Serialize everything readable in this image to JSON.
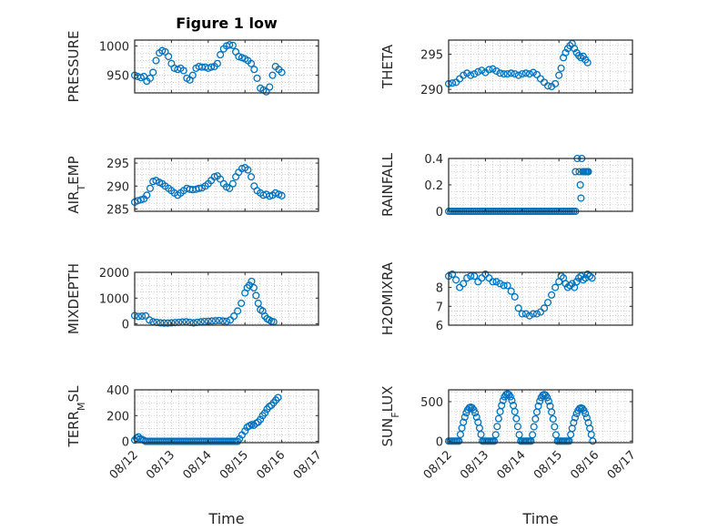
{
  "figure_title": "Figure 1 low",
  "colors": {
    "marker": "#0072BD",
    "axis": "#262626",
    "grid": "#b0b0b0"
  },
  "chart_data": [
    {
      "type": "scatter",
      "ylabel": "PRESSURE",
      "xlim": [
        0,
        5
      ],
      "ylim": [
        920,
        1010
      ],
      "yticks": [
        950,
        1000
      ],
      "xticklabels_visible": false,
      "x": [
        0.0,
        0.08,
        0.17,
        0.25,
        0.33,
        0.42,
        0.5,
        0.58,
        0.67,
        0.75,
        0.83,
        0.92,
        1.0,
        1.08,
        1.17,
        1.25,
        1.33,
        1.42,
        1.5,
        1.58,
        1.67,
        1.75,
        1.83,
        1.92,
        2.0,
        2.08,
        2.17,
        2.25,
        2.33,
        2.42,
        2.5,
        2.58,
        2.67,
        2.75,
        2.83,
        2.92,
        3.0,
        3.08,
        3.17,
        3.25,
        3.33,
        3.42,
        3.5,
        3.58,
        3.67,
        3.75,
        3.83,
        3.92,
        4.0
      ],
      "y": [
        950,
        948,
        946,
        948,
        940,
        945,
        955,
        975,
        988,
        992,
        990,
        982,
        970,
        962,
        960,
        962,
        958,
        945,
        942,
        950,
        962,
        965,
        964,
        964,
        962,
        964,
        965,
        970,
        985,
        995,
        1000,
        1002,
        1001,
        990,
        982,
        980,
        978,
        975,
        970,
        960,
        945,
        928,
        925,
        922,
        930,
        950,
        965,
        960,
        955
      ]
    },
    {
      "type": "scatter",
      "ylabel": "THETA",
      "xlim": [
        0,
        5
      ],
      "ylim": [
        289.5,
        297
      ],
      "yticks": [
        290,
        295
      ],
      "xticklabels_visible": false,
      "x": [
        0.0,
        0.1,
        0.2,
        0.3,
        0.4,
        0.5,
        0.6,
        0.7,
        0.8,
        0.9,
        1.0,
        1.1,
        1.2,
        1.3,
        1.4,
        1.5,
        1.6,
        1.7,
        1.8,
        1.9,
        2.0,
        2.1,
        2.2,
        2.3,
        2.4,
        2.5,
        2.6,
        2.7,
        2.8,
        2.9,
        3.0,
        3.06,
        3.12,
        3.18,
        3.24,
        3.3,
        3.36,
        3.42,
        3.48,
        3.54,
        3.6,
        3.66,
        3.72,
        3.78
      ],
      "y": [
        290.8,
        290.9,
        291.0,
        291.5,
        292.0,
        292.3,
        292.0,
        292.2,
        292.5,
        292.7,
        292.4,
        292.8,
        292.9,
        292.6,
        292.3,
        292.2,
        292.2,
        292.3,
        292.2,
        292.0,
        292.2,
        292.3,
        292.2,
        292.4,
        292.1,
        291.5,
        291.0,
        290.5,
        290.4,
        290.8,
        292.0,
        293.0,
        294.5,
        295.2,
        295.8,
        296.2,
        296.5,
        295.8,
        295.2,
        294.8,
        294.5,
        294.7,
        294.2,
        293.8
      ]
    },
    {
      "type": "scatter",
      "ylabel_main": "AIR",
      "ylabel_sub": "T",
      "ylabel_rest": "EMP",
      "xlim": [
        0,
        5
      ],
      "ylim": [
        284.5,
        296
      ],
      "yticks": [
        285,
        290,
        295
      ],
      "xticklabels_visible": false,
      "x": [
        0.0,
        0.08,
        0.17,
        0.25,
        0.33,
        0.42,
        0.5,
        0.58,
        0.67,
        0.75,
        0.83,
        0.92,
        1.0,
        1.08,
        1.17,
        1.25,
        1.33,
        1.42,
        1.5,
        1.58,
        1.67,
        1.75,
        1.83,
        1.92,
        2.0,
        2.08,
        2.17,
        2.25,
        2.33,
        2.42,
        2.5,
        2.58,
        2.67,
        2.75,
        2.83,
        2.92,
        3.0,
        3.08,
        3.17,
        3.25,
        3.33,
        3.42,
        3.5,
        3.58,
        3.67,
        3.75,
        3.83,
        3.92,
        4.0
      ],
      "y": [
        286.5,
        286.8,
        287.0,
        287.2,
        288.0,
        289.5,
        291.0,
        291.2,
        290.8,
        290.5,
        290.0,
        289.5,
        289.0,
        288.5,
        288.0,
        288.5,
        289.0,
        289.5,
        289.3,
        289.2,
        289.3,
        289.5,
        289.6,
        290.0,
        290.5,
        291.2,
        292.0,
        292.2,
        291.5,
        290.5,
        289.8,
        289.5,
        290.5,
        292.0,
        293.0,
        293.8,
        294.0,
        293.5,
        292.0,
        290.0,
        289.0,
        288.5,
        288.0,
        288.2,
        287.8,
        288.0,
        288.5,
        288.2,
        287.9
      ]
    },
    {
      "type": "scatter",
      "ylabel": "RAINFALL",
      "xlim": [
        0,
        5
      ],
      "ylim": [
        0,
        0.4
      ],
      "yticks": [
        0,
        0.2,
        0.4
      ],
      "xticklabels_visible": false,
      "x_zero_range": [
        0.0,
        3.45
      ],
      "x_zero_step": 0.05,
      "x": [
        3.45,
        3.5,
        3.55,
        3.58,
        3.6,
        3.62,
        3.65,
        3.68,
        3.72,
        3.75,
        3.78,
        3.8
      ],
      "y": [
        0.3,
        0.4,
        0.3,
        0.2,
        0.1,
        0.4,
        0.3,
        0.3,
        0.3,
        0.3,
        0.3,
        0.3
      ]
    },
    {
      "type": "scatter",
      "ylabel": "MIXDEPTH",
      "xlim": [
        0,
        5
      ],
      "ylim": [
        -50,
        2000
      ],
      "yticks": [
        0,
        1000,
        2000
      ],
      "xticklabels_visible": false,
      "x": [
        0.0,
        0.1,
        0.2,
        0.3,
        0.4,
        0.5,
        0.6,
        0.7,
        0.8,
        0.9,
        1.0,
        1.1,
        1.2,
        1.3,
        1.4,
        1.5,
        1.6,
        1.7,
        1.8,
        1.9,
        2.0,
        2.1,
        2.2,
        2.3,
        2.4,
        2.5,
        2.6,
        2.7,
        2.8,
        2.9,
        3.0,
        3.06,
        3.12,
        3.18,
        3.24,
        3.3,
        3.36,
        3.42,
        3.48,
        3.54,
        3.6,
        3.66,
        3.72,
        3.78
      ],
      "y": [
        320,
        290,
        300,
        310,
        150,
        80,
        60,
        40,
        30,
        30,
        40,
        50,
        60,
        70,
        80,
        60,
        40,
        60,
        80,
        90,
        100,
        110,
        120,
        130,
        110,
        100,
        150,
        300,
        500,
        800,
        1200,
        1400,
        1500,
        1650,
        1400,
        1100,
        800,
        550,
        500,
        300,
        200,
        150,
        100,
        80
      ]
    },
    {
      "type": "scatter",
      "ylabel": "H2OMIXRA",
      "xlim": [
        0,
        5
      ],
      "ylim": [
        6,
        8.8
      ],
      "yticks": [
        6,
        7,
        8
      ],
      "xticklabels_visible": false,
      "x": [
        0.0,
        0.1,
        0.2,
        0.3,
        0.4,
        0.5,
        0.6,
        0.7,
        0.8,
        0.9,
        1.0,
        1.1,
        1.2,
        1.3,
        1.4,
        1.5,
        1.6,
        1.7,
        1.8,
        1.9,
        2.0,
        2.1,
        2.2,
        2.3,
        2.4,
        2.5,
        2.6,
        2.7,
        2.8,
        2.9,
        3.0,
        3.06,
        3.12,
        3.18,
        3.24,
        3.3,
        3.36,
        3.42,
        3.48,
        3.54,
        3.6,
        3.66,
        3.72,
        3.78,
        3.84,
        3.9
      ],
      "y": [
        8.6,
        8.7,
        8.4,
        8.0,
        8.2,
        8.5,
        8.6,
        8.6,
        8.3,
        8.5,
        8.7,
        8.5,
        8.3,
        8.3,
        8.2,
        8.1,
        8.1,
        7.8,
        7.5,
        6.9,
        6.6,
        6.6,
        6.5,
        6.6,
        6.6,
        6.7,
        6.9,
        7.2,
        7.6,
        8.0,
        8.3,
        8.6,
        8.5,
        8.2,
        8.0,
        8.1,
        8.2,
        8.0,
        8.3,
        8.5,
        8.6,
        8.4,
        8.5,
        8.7,
        8.6,
        8.5
      ]
    },
    {
      "type": "scatter",
      "ylabel_main": "TERR",
      "ylabel_sub": "M",
      "ylabel_rest": "SL",
      "xlim": [
        0,
        5
      ],
      "ylim": [
        -10,
        400
      ],
      "yticks": [
        0,
        200,
        400
      ],
      "xticklabels": [
        "08/12",
        "08/13",
        "08/14",
        "08/15",
        "08/16",
        "08/17"
      ],
      "xlabel": "Time",
      "x_zero_range": [
        0.3,
        2.8
      ],
      "x_zero_step": 0.05,
      "x": [
        0.0,
        0.05,
        0.1,
        0.15,
        0.2,
        0.25,
        2.85,
        2.92,
        3.0,
        3.06,
        3.12,
        3.18,
        3.24,
        3.3,
        3.36,
        3.42,
        3.48,
        3.54,
        3.6,
        3.66,
        3.72,
        3.78,
        3.84,
        3.9
      ],
      "y": [
        10,
        25,
        35,
        20,
        15,
        8,
        20,
        50,
        80,
        110,
        120,
        130,
        125,
        140,
        150,
        170,
        200,
        220,
        250,
        270,
        280,
        300,
        320,
        340
      ]
    },
    {
      "type": "scatter",
      "ylabel_main": "SUN",
      "ylabel_sub": "F",
      "ylabel_rest": "LUX",
      "xlim": [
        0,
        5
      ],
      "ylim": [
        -20,
        650
      ],
      "yticks": [
        0,
        500
      ],
      "xticklabels": [
        "08/12",
        "08/13",
        "08/14",
        "08/15",
        "08/16",
        "08/17"
      ],
      "xlabel": "Time",
      "day_peaks": [
        {
          "center": 0.6,
          "peak": 430,
          "half_width": 0.32
        },
        {
          "center": 1.6,
          "peak": 600,
          "half_width": 0.35
        },
        {
          "center": 2.6,
          "peak": 590,
          "half_width": 0.35
        },
        {
          "center": 3.6,
          "peak": 420,
          "half_width": 0.32
        }
      ]
    }
  ]
}
